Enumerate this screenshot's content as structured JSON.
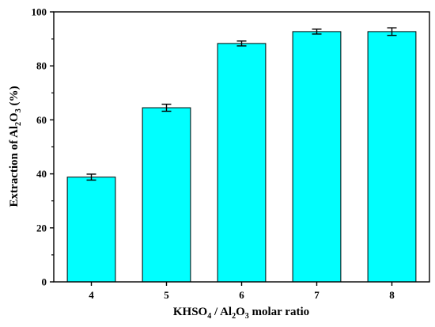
{
  "chart_data": {
    "type": "bar",
    "categories": [
      "4",
      "5",
      "6",
      "7",
      "8"
    ],
    "values": [
      38.8,
      64.5,
      88.3,
      92.7,
      92.7
    ],
    "errors": [
      1.1,
      1.3,
      0.9,
      0.9,
      1.4
    ],
    "ylim": [
      0,
      100
    ],
    "yticks": [
      0,
      20,
      40,
      60,
      80,
      100
    ],
    "xlabel_parts": {
      "a": "KHSO",
      "a_sub": "4",
      "b": " / Al",
      "b_sub": "2",
      "c": "O",
      "c_sub": "3",
      "d": " molar ratio"
    },
    "ylabel_parts": {
      "a": "Extraction of Al",
      "a_sub": "2",
      "b": "O",
      "b_sub": "3",
      "c": " (%)"
    },
    "bar_color": "#00ffff",
    "edge_color": "#000000",
    "grid": false
  }
}
